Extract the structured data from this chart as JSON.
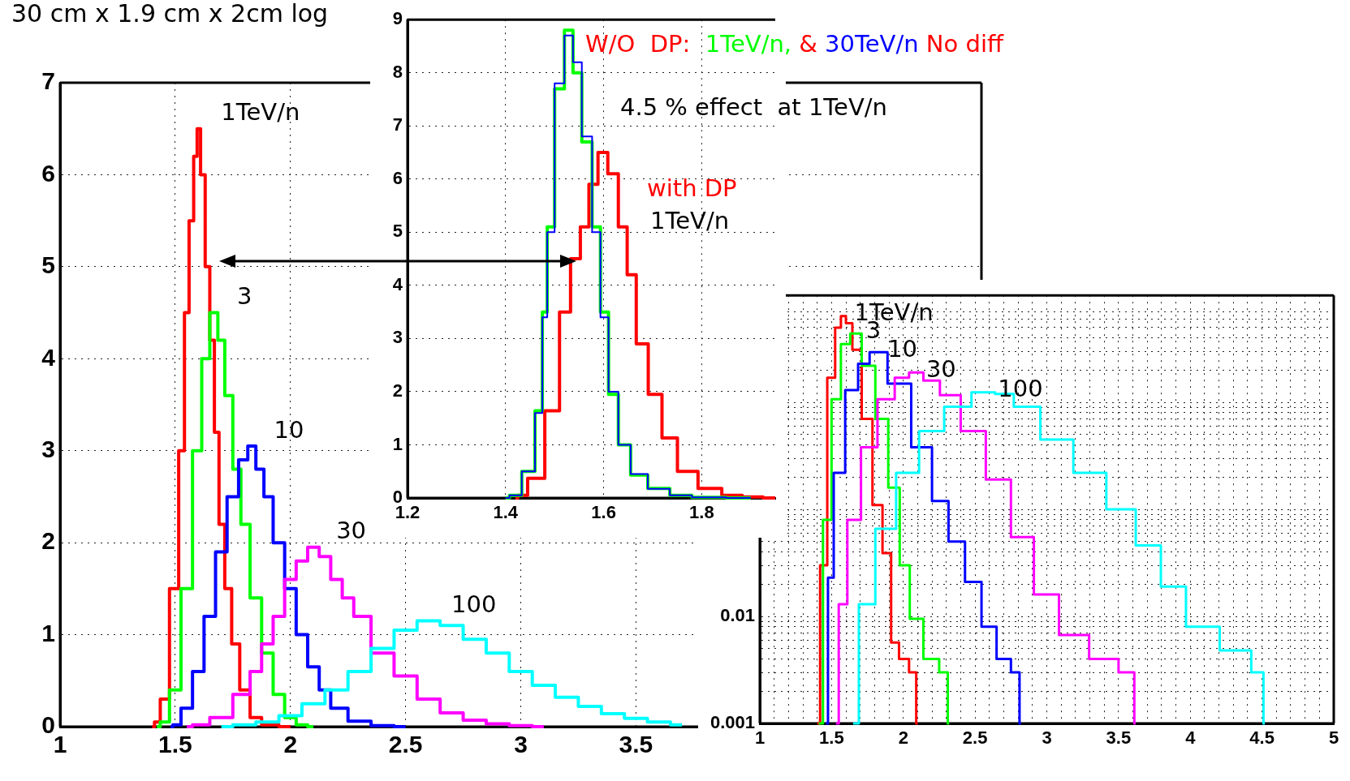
{
  "chart_data": [
    {
      "type": "step",
      "title": "30 cm x 1.9 cm x 2cm log",
      "xlim": [
        1,
        5
      ],
      "xticks": [
        1,
        1.5,
        2,
        2.5,
        3,
        3.5
      ],
      "ylim": [
        0,
        7
      ],
      "yticks": [
        0,
        1,
        2,
        3,
        4,
        5,
        6,
        7
      ],
      "grid": true,
      "series": [
        {
          "name": "1TeV/n",
          "color": "#ff0000",
          "x": [
            1.4,
            1.42,
            1.45,
            1.5,
            1.53,
            1.55,
            1.57,
            1.59,
            1.6,
            1.62,
            1.64,
            1.66,
            1.68,
            1.7,
            1.73,
            1.76,
            1.8,
            1.85,
            1.9,
            2.0
          ],
          "values": [
            0,
            0.05,
            0.3,
            1.5,
            3,
            4.5,
            5.5,
            6.2,
            6.5,
            6.0,
            5.0,
            4.2,
            3.2,
            2.2,
            1.5,
            0.9,
            0.4,
            0.1,
            0.02,
            0
          ]
        },
        {
          "name": "3",
          "color": "#00ff00",
          "x": [
            1.42,
            1.45,
            1.5,
            1.55,
            1.6,
            1.63,
            1.67,
            1.7,
            1.73,
            1.77,
            1.8,
            1.85,
            1.9,
            1.95,
            2.0,
            2.05,
            2.1
          ],
          "values": [
            0,
            0.05,
            0.4,
            1.5,
            3.0,
            4.0,
            4.5,
            4.2,
            3.6,
            2.8,
            2.2,
            1.4,
            0.8,
            0.35,
            0.1,
            0.02,
            0
          ]
        },
        {
          "name": "10",
          "color": "#0000ff",
          "x": [
            1.48,
            1.5,
            1.55,
            1.6,
            1.65,
            1.7,
            1.75,
            1.8,
            1.83,
            1.87,
            1.9,
            1.95,
            2.0,
            2.05,
            2.1,
            2.15,
            2.2,
            2.3,
            2.4,
            2.5
          ],
          "values": [
            0,
            0.02,
            0.2,
            0.6,
            1.2,
            1.9,
            2.5,
            2.9,
            3.05,
            2.8,
            2.5,
            2.0,
            1.5,
            1.0,
            0.65,
            0.4,
            0.2,
            0.06,
            0.01,
            0
          ]
        },
        {
          "name": "30",
          "color": "#ff00ff",
          "x": [
            1.55,
            1.6,
            1.7,
            1.8,
            1.85,
            1.9,
            1.95,
            2.0,
            2.05,
            2.1,
            2.15,
            2.2,
            2.25,
            2.3,
            2.4,
            2.5,
            2.6,
            2.7,
            2.8,
            2.9,
            3.0,
            3.1
          ],
          "values": [
            0,
            0.02,
            0.1,
            0.35,
            0.6,
            0.9,
            1.2,
            1.6,
            1.8,
            1.95,
            1.85,
            1.6,
            1.4,
            1.2,
            0.8,
            0.55,
            0.3,
            0.15,
            0.07,
            0.03,
            0.01,
            0
          ]
        },
        {
          "name": "100",
          "color": "#00ffff",
          "x": [
            1.7,
            1.8,
            1.9,
            2.0,
            2.1,
            2.2,
            2.3,
            2.4,
            2.5,
            2.6,
            2.7,
            2.8,
            2.9,
            3.0,
            3.1,
            3.2,
            3.3,
            3.4,
            3.5,
            3.6,
            3.7
          ],
          "values": [
            0,
            0.02,
            0.05,
            0.12,
            0.25,
            0.4,
            0.6,
            0.85,
            1.05,
            1.15,
            1.1,
            0.95,
            0.8,
            0.6,
            0.45,
            0.32,
            0.22,
            0.14,
            0.09,
            0.05,
            0.02
          ]
        }
      ]
    },
    {
      "type": "step",
      "xlim": [
        1.2,
        1.95
      ],
      "xticks": [
        1.2,
        1.4,
        1.6,
        1.8
      ],
      "ylim": [
        0,
        9
      ],
      "yticks": [
        0,
        1,
        2,
        3,
        4,
        5,
        6,
        7,
        8,
        9
      ],
      "grid": true,
      "series": [
        {
          "name": "with DP",
          "color": "#ff0000",
          "x": [
            1.42,
            1.43,
            1.46,
            1.5,
            1.52,
            1.545,
            1.56,
            1.58,
            1.597,
            1.62,
            1.64,
            1.656,
            1.677,
            1.705,
            1.733,
            1.768,
            1.817,
            1.865,
            1.9,
            1.95
          ],
          "values": [
            0,
            0.05,
            0.37,
            1.64,
            3.5,
            4.5,
            5.1,
            5.9,
            6.5,
            6.1,
            5.1,
            4.2,
            2.9,
            1.95,
            1.13,
            0.5,
            0.18,
            0.05,
            0.02,
            0
          ]
        },
        {
          "name": "1TeV/n,",
          "color": "#00ff00",
          "x": [
            1.4,
            1.416,
            1.45,
            1.47,
            1.48,
            1.49,
            1.51,
            1.53,
            1.545,
            1.566,
            1.587,
            1.6,
            1.62,
            1.64,
            1.67,
            1.71,
            1.76,
            1.8,
            1.9
          ],
          "values": [
            0,
            0.05,
            0.5,
            1.64,
            3.5,
            5.1,
            7.7,
            8.8,
            8.0,
            6.7,
            5.1,
            3.5,
            1.95,
            1.0,
            0.43,
            0.18,
            0.05,
            0.01,
            0
          ]
        },
        {
          "name": "30TeV/n",
          "color": "#0000ff",
          "x": [
            1.4,
            1.416,
            1.45,
            1.47,
            1.48,
            1.49,
            1.51,
            1.53,
            1.545,
            1.566,
            1.587,
            1.6,
            1.62,
            1.64,
            1.67,
            1.71,
            1.76,
            1.8,
            1.9
          ],
          "values": [
            0,
            0.05,
            0.5,
            1.6,
            3.4,
            5.0,
            7.8,
            8.7,
            8.2,
            6.8,
            5.0,
            3.4,
            2.0,
            1.0,
            0.45,
            0.17,
            0.05,
            0.01,
            0
          ]
        }
      ],
      "annotations": [
        "W/O  DP:",
        "&",
        "No diff",
        "4.5 % effect  at 1TeV/n",
        "1TeV/n"
      ]
    },
    {
      "type": "step",
      "log": "y",
      "xlim": [
        1,
        5
      ],
      "xticks": [
        1,
        {
          "value": 1.1,
          "label": null
        },
        {
          "value": 1.2,
          "label": null
        },
        {
          "value": 1.3,
          "label": null
        },
        {
          "value": 1.4,
          "label": null
        },
        1.5,
        {
          "value": 1.6,
          "label": null
        },
        {
          "value": 1.7,
          "label": null
        },
        {
          "value": 1.8,
          "label": null
        },
        {
          "value": 1.9,
          "label": null
        },
        2,
        {
          "value": 2.1,
          "label": null
        },
        {
          "value": 2.2,
          "label": null
        },
        {
          "value": 2.3,
          "label": null
        },
        {
          "value": 2.4,
          "label": null
        },
        2.5,
        {
          "value": 2.6,
          "label": null
        },
        {
          "value": 2.7,
          "label": null
        },
        {
          "value": 2.8,
          "label": null
        },
        {
          "value": 2.9,
          "label": null
        },
        3,
        {
          "value": 3.1,
          "label": null
        },
        {
          "value": 3.2,
          "label": null
        },
        {
          "value": 3.3,
          "label": null
        },
        {
          "value": 3.4,
          "label": null
        },
        3.5,
        {
          "value": 3.6,
          "label": null
        },
        {
          "value": 3.7,
          "label": null
        },
        {
          "value": 3.8,
          "label": null
        },
        {
          "value": 3.9,
          "label": null
        },
        4,
        {
          "value": 4.1,
          "label": null
        },
        {
          "value": 4.2,
          "label": null
        },
        {
          "value": 4.3,
          "label": null
        },
        {
          "value": 4.4,
          "label": null
        },
        4.5,
        {
          "value": 4.6,
          "label": null
        },
        {
          "value": 4.7,
          "label": null
        },
        {
          "value": 4.8,
          "label": null
        },
        {
          "value": 4.9,
          "label": null
        },
        5
      ],
      "ylim": [
        0.001,
        10
      ],
      "yticks": [
        0.001,
        {
          "value": 0.002,
          "label": null
        },
        {
          "value": 0.003,
          "label": null
        },
        {
          "value": 0.004,
          "label": null
        },
        {
          "value": 0.005,
          "label": null
        },
        {
          "value": 0.006,
          "label": null
        },
        {
          "value": 0.007,
          "label": null
        },
        {
          "value": 0.008,
          "label": null
        },
        {
          "value": 0.009,
          "label": null
        },
        0.01,
        {
          "value": 0.02,
          "label": null
        },
        {
          "value": 0.03,
          "label": null
        },
        {
          "value": 0.04,
          "label": null
        },
        {
          "value": 0.05,
          "label": null
        },
        {
          "value": 0.06,
          "label": null
        },
        {
          "value": 0.07,
          "label": null
        },
        {
          "value": 0.08,
          "label": null
        },
        {
          "value": 0.09,
          "label": null
        },
        {
          "value": 0.1,
          "label": null
        },
        {
          "value": 0.2,
          "label": null
        },
        {
          "value": 0.3,
          "label": null
        },
        {
          "value": 0.4,
          "label": null
        },
        {
          "value": 0.5,
          "label": null
        },
        {
          "value": 0.6,
          "label": null
        },
        {
          "value": 0.7,
          "label": null
        },
        {
          "value": 0.8,
          "label": null
        },
        {
          "value": 0.9,
          "label": null
        },
        {
          "value": 1,
          "label": null
        },
        {
          "value": 2,
          "label": null
        },
        {
          "value": 3,
          "label": null
        },
        {
          "value": 4,
          "label": null
        },
        {
          "value": 5,
          "label": null
        },
        {
          "value": 6,
          "label": null
        },
        {
          "value": 7,
          "label": null
        },
        {
          "value": 10,
          "label": null
        }
      ],
      "grid": true,
      "series": [
        {
          "name": "1TeV/n",
          "color": "#ff0000",
          "x": [
            1.4,
            1.44,
            1.5,
            1.55,
            1.58,
            1.62,
            1.67,
            1.75,
            1.82,
            1.89,
            1.94,
            2.0,
            2.08,
            2.1
          ],
          "values": [
            0.001,
            0.03,
            1.7,
            5.0,
            6.4,
            5.5,
            3.1,
            0.7,
            0.11,
            0.039,
            0.0057,
            0.004,
            0.003,
            0.001
          ]
        },
        {
          "name": "3",
          "color": "#00ff00",
          "x": [
            1.41,
            1.47,
            1.53,
            1.6,
            1.66,
            1.76,
            1.85,
            1.94,
            2.01,
            2.08,
            2.2,
            2.3,
            2.32
          ],
          "values": [
            0.001,
            0.08,
            1.07,
            3.5,
            4.4,
            2.2,
            0.7,
            0.16,
            0.03,
            0.0095,
            0.004,
            0.003,
            0.001
          ]
        },
        {
          "name": "10",
          "color": "#0000ff",
          "x": [
            1.46,
            1.49,
            1.54,
            1.65,
            1.72,
            1.81,
            1.97,
            2.14,
            2.26,
            2.37,
            2.49,
            2.6,
            2.7,
            2.8,
            2.82
          ],
          "values": [
            0.001,
            0.023,
            0.22,
            1.3,
            2.3,
            2.95,
            1.5,
            0.38,
            0.12,
            0.05,
            0.021,
            0.008,
            0.004,
            0.003,
            0.001
          ]
        },
        {
          "name": "30",
          "color": "#ff00ff",
          "x": [
            1.53,
            1.57,
            1.65,
            1.76,
            1.88,
            2.0,
            2.08,
            2.2,
            2.31,
            2.49,
            2.66,
            2.84,
            2.98,
            3.19,
            3.4,
            3.6,
            3.62
          ],
          "values": [
            0.001,
            0.013,
            0.08,
            0.38,
            1.07,
            1.7,
            1.9,
            1.6,
            1.17,
            0.54,
            0.19,
            0.055,
            0.016,
            0.0067,
            0.004,
            0.003,
            0.001
          ]
        },
        {
          "name": "100",
          "color": "#00ffff",
          "x": [
            1.65,
            1.73,
            1.88,
            2.02,
            2.2,
            2.37,
            2.58,
            2.7,
            2.84,
            3.07,
            3.3,
            3.53,
            3.71,
            3.88,
            4.06,
            4.35,
            4.5,
            4.52
          ],
          "values": [
            0.001,
            0.013,
            0.066,
            0.22,
            0.54,
            0.91,
            1.24,
            1.2,
            0.91,
            0.45,
            0.22,
            0.1,
            0.046,
            0.019,
            0.008,
            0.0048,
            0.003,
            0.001
          ]
        }
      ]
    }
  ]
}
